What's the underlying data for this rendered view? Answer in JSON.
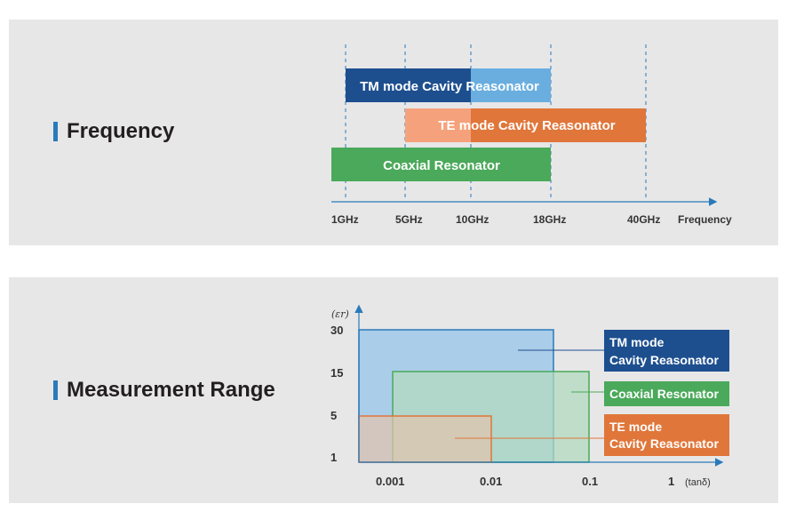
{
  "frequency": {
    "title": "Frequency",
    "axis_label": "Frequency",
    "ticks": [
      "1GHz",
      "5GHz",
      "10GHz",
      "18GHz",
      "40GHz"
    ],
    "bars": [
      {
        "label": "TM mode Cavity Reasonator",
        "from": "1GHz",
        "to": "18GHz",
        "color": "#1d4f8f",
        "color_light": "#6aaee0"
      },
      {
        "label": "TE mode Cavity Reasonator",
        "from": "5GHz",
        "to": "40GHz",
        "color": "#e0763a",
        "color_light": "#f5a27c"
      },
      {
        "label": "Coaxial Resonator",
        "from": "1GHz",
        "to": "18GHz",
        "color": "#4aa95a"
      }
    ]
  },
  "measurement": {
    "title": "Measurement Range",
    "y_label_symbol": "εr",
    "y_ticks": [
      "30",
      "15",
      "5",
      "1"
    ],
    "x_ticks": [
      "0.001",
      "0.01",
      "0.1",
      "1"
    ],
    "x_label": "(tanδ)",
    "legend": [
      {
        "line1": "TM mode",
        "line2": "Cavity Reasonator",
        "color": "#1d4f8f"
      },
      {
        "line1": "Coaxial Resonator",
        "line2": "",
        "color": "#4aa95a"
      },
      {
        "line1": "TE mode",
        "line2": "Cavity Reasonator",
        "color": "#e0763a"
      }
    ]
  }
}
